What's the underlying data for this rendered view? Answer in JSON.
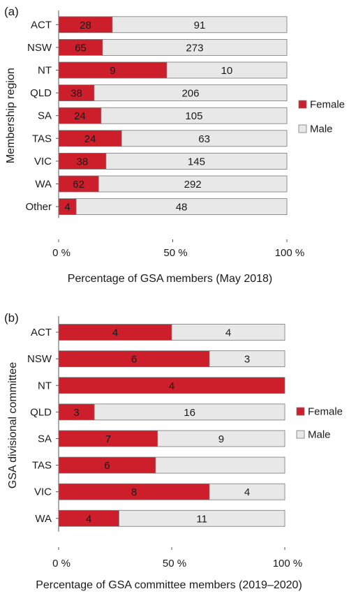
{
  "chart_data": [
    {
      "type": "bar",
      "orientation": "horizontal",
      "stacked": "percent",
      "panel_label": "(a)",
      "categories": [
        "ACT",
        "NSW",
        "NT",
        "QLD",
        "SA",
        "TAS",
        "VIC",
        "WA",
        "Other"
      ],
      "series": [
        {
          "name": "Female",
          "values": [
            28,
            65,
            9,
            38,
            24,
            24,
            38,
            62,
            4
          ],
          "color": "#cc1f2b"
        },
        {
          "name": "Male",
          "values": [
            91,
            273,
            10,
            206,
            105,
            63,
            145,
            292,
            48
          ],
          "color": "#e8e8e8"
        }
      ],
      "xlabel": "Percentage of GSA members (May 2018)",
      "ylabel": "Membership region",
      "xticks": [
        "0 %",
        "50 %",
        "100 %"
      ],
      "xlim": [
        0,
        100
      ],
      "legend_position": "right",
      "grid": false
    },
    {
      "type": "bar",
      "orientation": "horizontal",
      "stacked": "percent",
      "panel_label": "(b)",
      "categories": [
        "ACT",
        "NSW",
        "NT",
        "QLD",
        "SA",
        "TAS",
        "VIC",
        "WA"
      ],
      "series": [
        {
          "name": "Female",
          "values": [
            4,
            6,
            4,
            3,
            7,
            6,
            8,
            4
          ],
          "color": "#cc1f2b"
        },
        {
          "name": "Male",
          "values": [
            4,
            3,
            0,
            16,
            9,
            8,
            4,
            11
          ],
          "color": "#e8e8e8"
        }
      ],
      "hidden_labels": {
        "Male": [
          false,
          false,
          true,
          false,
          false,
          true,
          false,
          false
        ]
      },
      "xlabel": "Percentage of GSA committee members (2019–2020)",
      "ylabel": "GSA divisional committee",
      "xticks": [
        "0 %",
        "50 %",
        "100 %"
      ],
      "xlim": [
        0,
        100
      ],
      "legend_position": "right",
      "grid": false
    }
  ]
}
